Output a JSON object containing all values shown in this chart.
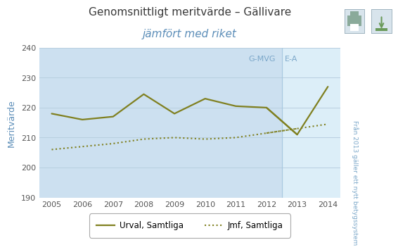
{
  "title_line1": "Genomsnittligt meritvärde – Gällivare",
  "title_line2": "jämfört med riket",
  "ylabel": "Meritvärde",
  "ylabel_color": "#5b8db8",
  "right_label": "Från 2013 gäller ett nytt betygssystem",
  "legend_label1": "Urval, Samtliga",
  "legend_label2": "Jmf, Samtliga",
  "annotation_text1": "G-MVG",
  "annotation_text2": "E-A",
  "annotation_color": "#7ba7c9",
  "years_all": [
    2005,
    2006,
    2007,
    2008,
    2009,
    2010,
    2011,
    2012,
    2013,
    2014
  ],
  "values_solid": [
    218,
    216,
    217,
    224.5,
    218,
    223,
    220.5,
    220,
    211,
    227
  ],
  "values_dotted": [
    206,
    207,
    208,
    209.5,
    210,
    209.5,
    210,
    211.5,
    213,
    214.5
  ],
  "ylim": [
    190,
    240
  ],
  "xlim_left": 2004.6,
  "xlim_right": 2014.4,
  "bg_color_left": "#cce0f0",
  "bg_color_right": "#dceef8",
  "divider_x": 2012.5,
  "line_color": "#808020",
  "title_color": "#3a3a3a",
  "title2_color": "#5b8db8",
  "title_fontsize": 11,
  "axis_color": "#5b8db8",
  "grid_color": "#b8cfe0",
  "tick_color": "#555555",
  "tick_fontsize": 8,
  "fig_bg": "#ffffff"
}
